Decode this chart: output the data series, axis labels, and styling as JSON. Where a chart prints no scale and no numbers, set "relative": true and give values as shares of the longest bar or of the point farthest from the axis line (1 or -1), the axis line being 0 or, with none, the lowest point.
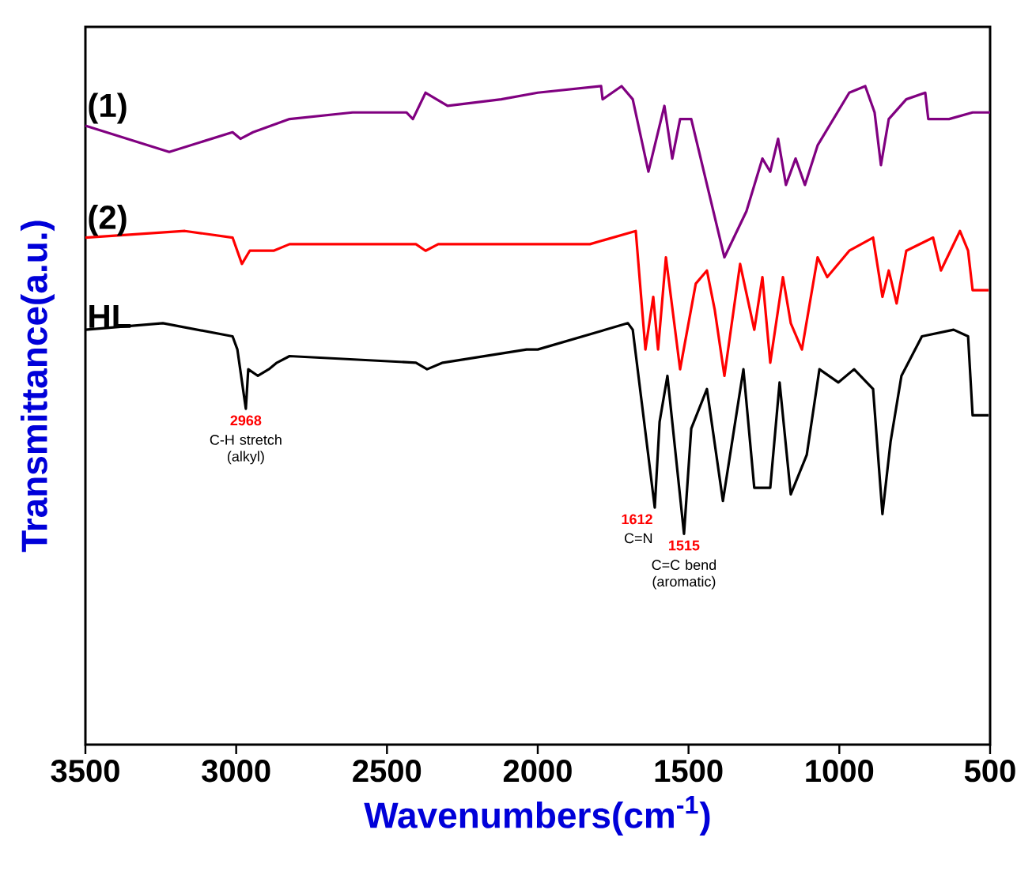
{
  "chart_data": {
    "type": "line",
    "relative": true,
    "xlabel": "Wavenumbers(cm$^{-1}$)",
    "ylabel": "Transmittance(a.u.)",
    "xlim": [
      3500,
      500
    ],
    "xticks": [
      3500,
      3000,
      2500,
      2000,
      1500,
      1000,
      500
    ],
    "legend": false,
    "tick_labels": "x",
    "series": [
      {
        "name": "(1)",
        "color": "#800080",
        "x": [
          3500,
          3222,
          3012,
          2986,
          2944,
          2823,
          2614,
          2435,
          2414,
          2372,
          2299,
          2121,
          2000,
          1790,
          1785,
          1722,
          1685,
          1633,
          1580,
          1554,
          1528,
          1491,
          1381,
          1308,
          1255,
          1229,
          1203,
          1177,
          1145,
          1114,
          1072,
          967,
          914,
          883,
          862,
          836,
          778,
          715,
          705,
          636,
          558,
          500
        ],
        "values": [
          0.94,
          0.9,
          0.93,
          0.92,
          0.93,
          0.95,
          0.96,
          0.96,
          0.95,
          0.99,
          0.97,
          0.98,
          0.99,
          1.0,
          0.98,
          1.0,
          0.98,
          0.87,
          0.97,
          0.89,
          0.95,
          0.95,
          0.74,
          0.81,
          0.89,
          0.87,
          0.92,
          0.85,
          0.89,
          0.85,
          0.91,
          0.99,
          1.0,
          0.96,
          0.88,
          0.95,
          0.98,
          0.99,
          0.95,
          0.95,
          0.96,
          0.96
        ]
      },
      {
        "name": "(2)",
        "color": "#ff0000",
        "x": [
          3500,
          3170,
          3012,
          2981,
          2955,
          2876,
          2823,
          2404,
          2372,
          2330,
          1948,
          1827,
          1675,
          1643,
          1617,
          1601,
          1575,
          1528,
          1476,
          1439,
          1413,
          1381,
          1329,
          1282,
          1255,
          1229,
          1187,
          1161,
          1124,
          1072,
          1040,
          967,
          888,
          857,
          836,
          810,
          778,
          689,
          663,
          600,
          573,
          558,
          505
        ],
        "values": [
          0.77,
          0.78,
          0.77,
          0.73,
          0.75,
          0.75,
          0.76,
          0.76,
          0.75,
          0.76,
          0.76,
          0.76,
          0.78,
          0.6,
          0.68,
          0.6,
          0.74,
          0.57,
          0.7,
          0.72,
          0.66,
          0.56,
          0.73,
          0.63,
          0.71,
          0.58,
          0.71,
          0.64,
          0.6,
          0.74,
          0.71,
          0.75,
          0.77,
          0.68,
          0.72,
          0.67,
          0.75,
          0.77,
          0.72,
          0.78,
          0.75,
          0.69,
          0.69
        ]
      },
      {
        "name": "HL",
        "color": "#000000",
        "x": [
          3500,
          3243,
          3012,
          2996,
          2968,
          2960,
          2928,
          2892,
          2865,
          2823,
          2404,
          2367,
          2315,
          2037,
          2000,
          1701,
          1685,
          1612,
          1596,
          1570,
          1515,
          1491,
          1439,
          1386,
          1318,
          1282,
          1229,
          1198,
          1161,
          1108,
          1066,
          1003,
          951,
          888,
          857,
          830,
          794,
          726,
          621,
          573,
          558,
          505
        ],
        "values": [
          0.63,
          0.64,
          0.62,
          0.6,
          0.51,
          0.57,
          0.56,
          0.57,
          0.58,
          0.59,
          0.58,
          0.57,
          0.58,
          0.6,
          0.6,
          0.64,
          0.63,
          0.36,
          0.49,
          0.56,
          0.32,
          0.48,
          0.54,
          0.37,
          0.57,
          0.39,
          0.39,
          0.55,
          0.38,
          0.44,
          0.57,
          0.55,
          0.57,
          0.54,
          0.35,
          0.46,
          0.56,
          0.62,
          0.63,
          0.62,
          0.5,
          0.5
        ]
      }
    ],
    "annotations": [
      {
        "text": "2968",
        "x": 2968,
        "y": 0.51
      },
      {
        "text": "C-H stretch (alkyl)",
        "x": 2968,
        "y": 0.51
      },
      {
        "text": "1612",
        "x": 1612,
        "y": 0.36
      },
      {
        "text": "C=N",
        "x": 1612,
        "y": 0.36
      },
      {
        "text": "1515",
        "x": 1515,
        "y": 0.32
      },
      {
        "text": "C=C bend (aromatic)",
        "x": 1515,
        "y": 0.32
      }
    ]
  }
}
